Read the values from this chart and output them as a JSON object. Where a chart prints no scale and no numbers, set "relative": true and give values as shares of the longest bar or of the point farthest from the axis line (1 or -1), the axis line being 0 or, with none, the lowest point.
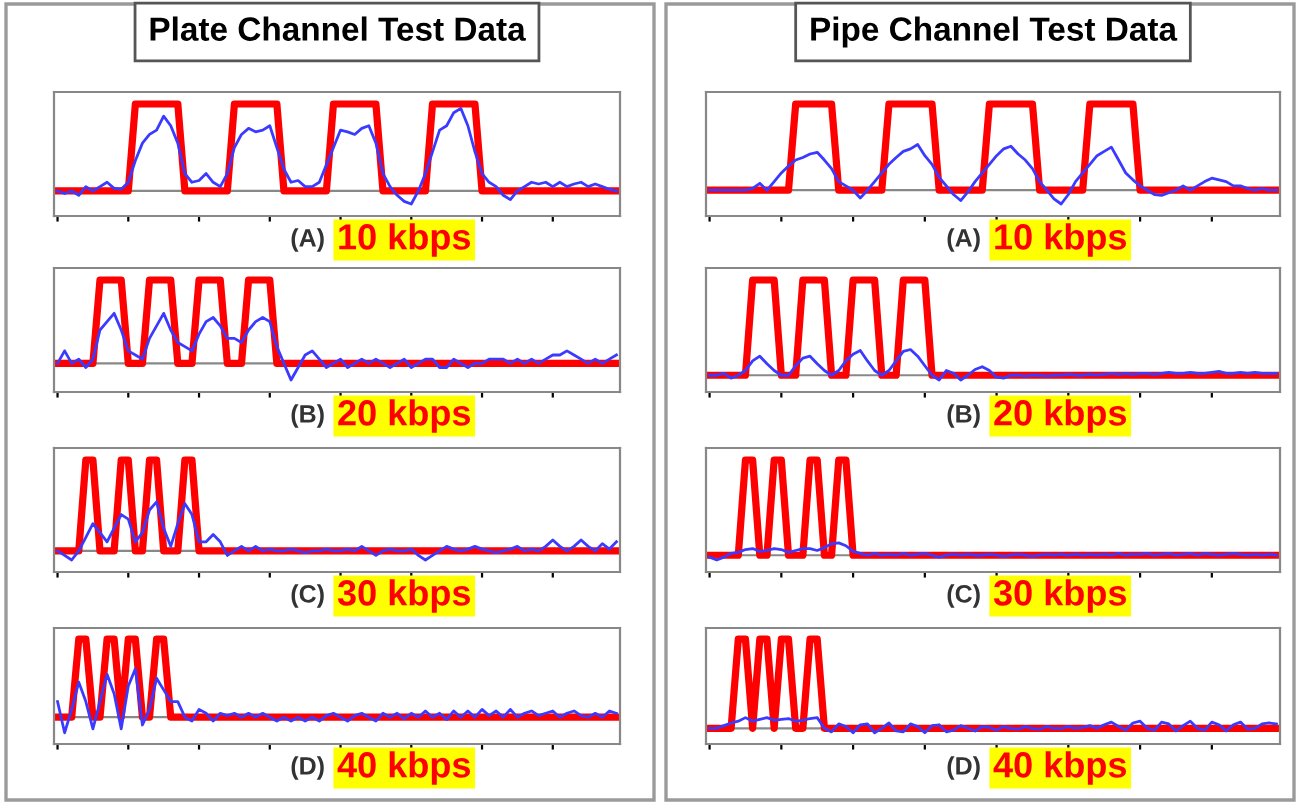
{
  "chart_data": [
    {
      "type": "line",
      "relative": true,
      "title": "Plate Channel Test Data",
      "annotations": [
        "(A)",
        "10 kbps"
      ],
      "categories": [
        null,
        null,
        null,
        null,
        null,
        null,
        null,
        null,
        null,
        null,
        null,
        null,
        null,
        null,
        null,
        null,
        null,
        null,
        null,
        null,
        null,
        null,
        null,
        null,
        null,
        null,
        null,
        null,
        null,
        null,
        null,
        null,
        null,
        null,
        null,
        null,
        null,
        null,
        null,
        null,
        null,
        null,
        null,
        null,
        null,
        null,
        null,
        null,
        null,
        null,
        null,
        null,
        null,
        null,
        null,
        null,
        null,
        null,
        null,
        null,
        null,
        null,
        null,
        null,
        null,
        null,
        null,
        null,
        null,
        null,
        null,
        null,
        null,
        null,
        null,
        null,
        null,
        null,
        null,
        null
      ],
      "series": [
        {
          "color": "#ff0000",
          "values": [
            0,
            0,
            0,
            0,
            0,
            0,
            0,
            0,
            0,
            0,
            0,
            1,
            1,
            1,
            1,
            1,
            1,
            1,
            0,
            0,
            0,
            0,
            0,
            0,
            0,
            1,
            1,
            1,
            1,
            1,
            1,
            1,
            0,
            0,
            0,
            0,
            0,
            0,
            0,
            1,
            1,
            1,
            1,
            1,
            1,
            1,
            0,
            0,
            0,
            0,
            0,
            0,
            0,
            1,
            1,
            1,
            1,
            1,
            1,
            1,
            0,
            0,
            0,
            0,
            0,
            0,
            0,
            0,
            0,
            0,
            0,
            0,
            0,
            0,
            0,
            0,
            0,
            0,
            0,
            0
          ]
        },
        {
          "color": "#3b3bff",
          "values": [
            0.0,
            -0.03,
            0.0,
            -0.05,
            0.05,
            0.0,
            0.05,
            0.1,
            0.03,
            0.02,
            0.1,
            0.35,
            0.55,
            0.65,
            0.7,
            0.86,
            0.75,
            0.55,
            0.2,
            0.1,
            0.12,
            0.2,
            0.1,
            0.05,
            0.2,
            0.5,
            0.65,
            0.72,
            0.68,
            0.7,
            0.75,
            0.5,
            0.25,
            0.1,
            0.12,
            0.05,
            0.05,
            0.1,
            0.3,
            0.5,
            0.7,
            0.68,
            0.65,
            0.72,
            0.75,
            0.55,
            0.2,
            0.05,
            -0.05,
            -0.12,
            -0.15,
            0.0,
            0.2,
            0.45,
            0.7,
            0.75,
            0.9,
            0.95,
            0.75,
            0.45,
            0.2,
            0.1,
            0.05,
            -0.05,
            -0.1,
            0.0,
            0.05,
            0.1,
            0.08,
            0.1,
            0.05,
            0.1,
            0.05,
            0.08,
            0.1,
            0.05,
            0.08,
            0.05,
            0.02,
            0.0
          ]
        }
      ]
    },
    {
      "type": "line",
      "relative": true,
      "annotations": [
        "(B)",
        "20 kbps"
      ],
      "categories": [
        null,
        null,
        null,
        null,
        null,
        null,
        null,
        null,
        null,
        null,
        null,
        null,
        null,
        null,
        null,
        null,
        null,
        null,
        null,
        null,
        null,
        null,
        null,
        null,
        null,
        null,
        null,
        null,
        null,
        null,
        null,
        null,
        null,
        null,
        null,
        null,
        null,
        null,
        null,
        null,
        null,
        null,
        null,
        null,
        null,
        null,
        null,
        null,
        null,
        null,
        null,
        null,
        null,
        null,
        null,
        null,
        null,
        null,
        null,
        null,
        null,
        null,
        null,
        null,
        null,
        null,
        null,
        null,
        null,
        null,
        null,
        null,
        null,
        null,
        null,
        null,
        null,
        null,
        null,
        null
      ],
      "series": [
        {
          "color": "#ff0000",
          "values": [
            0,
            0,
            0,
            0,
            0,
            0,
            1,
            1,
            1,
            1,
            0,
            0,
            0,
            1,
            1,
            1,
            1,
            0,
            0,
            0,
            1,
            1,
            1,
            1,
            0,
            0,
            0,
            1,
            1,
            1,
            1,
            0,
            0,
            0,
            0,
            0,
            0,
            0,
            0,
            0,
            0,
            0,
            0,
            0,
            0,
            0,
            0,
            0,
            0,
            0,
            0,
            0,
            0,
            0,
            0,
            0,
            0,
            0,
            0,
            0,
            0,
            0,
            0,
            0,
            0,
            0,
            0,
            0,
            0,
            0,
            0,
            0,
            0,
            0,
            0,
            0,
            0,
            0,
            0,
            0
          ]
        },
        {
          "color": "#3b3bff",
          "values": [
            0.0,
            0.15,
            0.0,
            0.05,
            -0.05,
            0.05,
            0.4,
            0.5,
            0.6,
            0.4,
            0.15,
            0.1,
            0.05,
            0.3,
            0.45,
            0.6,
            0.4,
            0.25,
            0.2,
            0.15,
            0.35,
            0.5,
            0.55,
            0.45,
            0.3,
            0.3,
            0.25,
            0.4,
            0.5,
            0.55,
            0.5,
            0.2,
            0.0,
            -0.2,
            -0.05,
            0.1,
            0.15,
            0.05,
            -0.05,
            0.0,
            0.05,
            -0.05,
            0.0,
            0.05,
            0.0,
            0.05,
            0.0,
            -0.05,
            0.0,
            0.05,
            -0.05,
            0.0,
            0.05,
            0.05,
            -0.05,
            -0.05,
            0.05,
            0.0,
            -0.05,
            0.0,
            0.0,
            0.05,
            0.05,
            0.05,
            0.0,
            0.05,
            0.0,
            0.05,
            0.0,
            0.05,
            0.1,
            0.1,
            0.15,
            0.1,
            0.05,
            0.0,
            0.05,
            0.0,
            0.05,
            0.1
          ]
        }
      ]
    },
    {
      "type": "line",
      "relative": true,
      "annotations": [
        "(C)",
        "30 kbps"
      ],
      "categories": [
        null,
        null,
        null,
        null,
        null,
        null,
        null,
        null,
        null,
        null,
        null,
        null,
        null,
        null,
        null,
        null,
        null,
        null,
        null,
        null,
        null,
        null,
        null,
        null,
        null,
        null,
        null,
        null,
        null,
        null,
        null,
        null,
        null,
        null,
        null,
        null,
        null,
        null,
        null,
        null,
        null,
        null,
        null,
        null,
        null,
        null,
        null,
        null,
        null,
        null,
        null,
        null,
        null,
        null,
        null,
        null,
        null,
        null,
        null,
        null,
        null,
        null,
        null,
        null,
        null,
        null,
        null,
        null,
        null,
        null,
        null,
        null,
        null,
        null,
        null,
        null,
        null,
        null,
        null,
        null
      ],
      "series": [
        {
          "color": "#ff0000",
          "values": [
            0,
            0,
            0,
            0,
            1,
            1,
            0,
            0,
            0,
            1,
            1,
            0,
            0,
            1,
            1,
            0,
            0,
            0,
            1,
            1,
            0,
            0,
            0,
            0,
            0,
            0,
            0,
            0,
            0,
            0,
            0,
            0,
            0,
            0,
            0,
            0,
            0,
            0,
            0,
            0,
            0,
            0,
            0,
            0,
            0,
            0,
            0,
            0,
            0,
            0,
            0,
            0,
            0,
            0,
            0,
            0,
            0,
            0,
            0,
            0,
            0,
            0,
            0,
            0,
            0,
            0,
            0,
            0,
            0,
            0,
            0,
            0,
            0,
            0,
            0,
            0,
            0,
            0,
            0,
            0
          ]
        },
        {
          "color": "#3b3bff",
          "values": [
            0.0,
            -0.05,
            -0.1,
            0.0,
            0.15,
            0.3,
            0.2,
            0.1,
            0.25,
            0.4,
            0.35,
            0.1,
            0.2,
            0.45,
            0.54,
            0.25,
            0.05,
            0.3,
            0.52,
            0.4,
            0.1,
            0.1,
            0.18,
            0.1,
            -0.05,
            0.0,
            0.05,
            0.0,
            0.05,
            0.0,
            0.02,
            0.0,
            0.0,
            0.02,
            0.0,
            -0.02,
            0.0,
            0.0,
            0.02,
            0.0,
            0.0,
            0.02,
            0.0,
            0.05,
            0.0,
            -0.05,
            0.0,
            0.02,
            0.0,
            0.0,
            0.02,
            -0.05,
            -0.1,
            -0.05,
            0.0,
            0.05,
            0.02,
            0.0,
            0.02,
            0.05,
            0.02,
            0.0,
            -0.02,
            0.0,
            0.02,
            0.05,
            0.0,
            0.02,
            0.0,
            0.05,
            0.12,
            0.05,
            0.0,
            0.05,
            0.12,
            0.05,
            0.0,
            0.08,
            0.02,
            0.1
          ]
        }
      ]
    },
    {
      "type": "line",
      "relative": true,
      "annotations": [
        "(D)",
        "40 kbps"
      ],
      "categories": [
        null,
        null,
        null,
        null,
        null,
        null,
        null,
        null,
        null,
        null,
        null,
        null,
        null,
        null,
        null,
        null,
        null,
        null,
        null,
        null,
        null,
        null,
        null,
        null,
        null,
        null,
        null,
        null,
        null,
        null,
        null,
        null,
        null,
        null,
        null,
        null,
        null,
        null,
        null,
        null,
        null,
        null,
        null,
        null,
        null,
        null,
        null,
        null,
        null,
        null,
        null,
        null,
        null,
        null,
        null,
        null,
        null,
        null,
        null,
        null,
        null,
        null,
        null,
        null,
        null,
        null,
        null,
        null,
        null,
        null,
        null,
        null,
        null,
        null,
        null,
        null,
        null,
        null,
        null,
        null
      ],
      "series": [
        {
          "color": "#ff0000",
          "values": [
            0,
            0,
            0,
            1,
            1,
            0,
            0,
            1,
            1,
            0,
            1,
            1,
            0,
            0,
            1,
            1,
            0,
            0,
            0,
            0,
            0,
            0,
            0,
            0,
            0,
            0,
            0,
            0,
            0,
            0,
            0,
            0,
            0,
            0,
            0,
            0,
            0,
            0,
            0,
            0,
            0,
            0,
            0,
            0,
            0,
            0,
            0,
            0,
            0,
            0,
            0,
            0,
            0,
            0,
            0,
            0,
            0,
            0,
            0,
            0,
            0,
            0,
            0,
            0,
            0,
            0,
            0,
            0,
            0,
            0,
            0,
            0,
            0,
            0,
            0,
            0,
            0,
            0,
            0,
            0
          ]
        },
        {
          "color": "#3b3bff",
          "values": [
            0.2,
            -0.2,
            0.1,
            0.45,
            0.2,
            -0.15,
            0.2,
            0.55,
            0.3,
            -0.15,
            0.4,
            0.62,
            -0.1,
            0.1,
            0.5,
            0.35,
            0.2,
            0.2,
            0.0,
            -0.05,
            0.1,
            0.05,
            -0.05,
            0.05,
            0.02,
            0.05,
            0.0,
            0.05,
            0.0,
            0.05,
            0.0,
            -0.05,
            0.0,
            -0.05,
            0.0,
            -0.05,
            0.0,
            -0.05,
            0.02,
            0.05,
            0.0,
            -0.05,
            0.02,
            0.05,
            0.0,
            -0.05,
            0.05,
            0.0,
            0.05,
            -0.02,
            0.05,
            0.0,
            0.08,
            0.0,
            0.05,
            -0.03,
            0.08,
            0.0,
            0.08,
            0.0,
            0.1,
            0.02,
            0.08,
            0.0,
            0.1,
            0.0,
            0.05,
            0.08,
            0.02,
            0.05,
            0.08,
            0.0,
            0.05,
            0.08,
            0.02,
            0.0,
            0.05,
            0.0,
            0.08,
            0.05
          ]
        }
      ]
    },
    {
      "type": "line",
      "relative": true,
      "title": "Pipe Channel Test Data",
      "annotations": [
        "(A)",
        "10 kbps"
      ],
      "categories": [
        null,
        null,
        null,
        null,
        null,
        null,
        null,
        null,
        null,
        null,
        null,
        null,
        null,
        null,
        null,
        null,
        null,
        null,
        null,
        null,
        null,
        null,
        null,
        null,
        null,
        null,
        null,
        null,
        null,
        null,
        null,
        null,
        null,
        null,
        null,
        null,
        null,
        null,
        null,
        null,
        null,
        null,
        null,
        null,
        null,
        null,
        null,
        null,
        null,
        null,
        null,
        null,
        null,
        null,
        null,
        null,
        null,
        null,
        null,
        null,
        null,
        null,
        null,
        null,
        null,
        null,
        null,
        null,
        null,
        null,
        null,
        null,
        null,
        null,
        null,
        null,
        null,
        null,
        null,
        null
      ],
      "series": [
        {
          "color": "#ff0000",
          "values": [
            0,
            0,
            0,
            0,
            0,
            0,
            0,
            0,
            0,
            0,
            0,
            0,
            1,
            1,
            1,
            1,
            1,
            1,
            0,
            0,
            0,
            0,
            0,
            0,
            0,
            1,
            1,
            1,
            1,
            1,
            1,
            1,
            0,
            0,
            0,
            0,
            0,
            0,
            0,
            1,
            1,
            1,
            1,
            1,
            1,
            1,
            0,
            0,
            0,
            0,
            0,
            0,
            0,
            1,
            1,
            1,
            1,
            1,
            1,
            1,
            0,
            0,
            0,
            0,
            0,
            0,
            0,
            0,
            0,
            0,
            0,
            0,
            0,
            0,
            0,
            0,
            0,
            0,
            0,
            0
          ]
        },
        {
          "color": "#3b3bff",
          "values": [
            0.0,
            0.0,
            0.0,
            0.0,
            0.0,
            0.0,
            0.02,
            0.08,
            0.0,
            0.1,
            0.2,
            0.28,
            0.35,
            0.38,
            0.42,
            0.44,
            0.35,
            0.25,
            0.1,
            0.05,
            0.0,
            -0.09,
            0.0,
            0.1,
            0.2,
            0.3,
            0.38,
            0.45,
            0.48,
            0.53,
            0.4,
            0.3,
            0.15,
            0.05,
            -0.05,
            -0.12,
            -0.02,
            0.1,
            0.2,
            0.3,
            0.4,
            0.48,
            0.51,
            0.42,
            0.35,
            0.25,
            0.1,
            0.0,
            -0.1,
            -0.16,
            -0.05,
            0.1,
            0.2,
            0.3,
            0.4,
            0.45,
            0.5,
            0.35,
            0.2,
            0.12,
            0.05,
            0.0,
            -0.05,
            -0.06,
            -0.03,
            0.0,
            0.05,
            0.0,
            0.05,
            0.1,
            0.14,
            0.12,
            0.1,
            0.05,
            0.05,
            0.02,
            0.0,
            0.02,
            0.0,
            0.0
          ]
        }
      ]
    },
    {
      "type": "line",
      "relative": true,
      "annotations": [
        "(B)",
        "20 kbps"
      ],
      "categories": [
        null,
        null,
        null,
        null,
        null,
        null,
        null,
        null,
        null,
        null,
        null,
        null,
        null,
        null,
        null,
        null,
        null,
        null,
        null,
        null,
        null,
        null,
        null,
        null,
        null,
        null,
        null,
        null,
        null,
        null,
        null,
        null,
        null,
        null,
        null,
        null,
        null,
        null,
        null,
        null,
        null,
        null,
        null,
        null,
        null,
        null,
        null,
        null,
        null,
        null,
        null,
        null,
        null,
        null,
        null,
        null,
        null,
        null,
        null,
        null,
        null,
        null,
        null,
        null,
        null,
        null,
        null,
        null,
        null,
        null,
        null,
        null,
        null,
        null,
        null,
        null,
        null,
        null,
        null,
        null
      ],
      "series": [
        {
          "color": "#ff0000",
          "values": [
            0,
            0,
            0,
            0,
            0,
            0,
            1,
            1,
            1,
            1,
            0,
            0,
            0,
            1,
            1,
            1,
            1,
            0,
            0,
            0,
            1,
            1,
            1,
            1,
            0,
            0,
            0,
            1,
            1,
            1,
            1,
            0,
            0,
            0,
            0,
            0,
            0,
            0,
            0,
            0,
            0,
            0,
            0,
            0,
            0,
            0,
            0,
            0,
            0,
            0,
            0,
            0,
            0,
            0,
            0,
            0,
            0,
            0,
            0,
            0,
            0,
            0,
            0,
            0,
            0,
            0,
            0,
            0,
            0,
            0,
            0,
            0,
            0,
            0,
            0,
            0,
            0,
            0,
            0,
            0
          ]
        },
        {
          "color": "#3b3bff",
          "values": [
            0.0,
            0.0,
            0.02,
            -0.03,
            0.0,
            0.05,
            0.15,
            0.2,
            0.12,
            0.05,
            0.0,
            0.0,
            0.1,
            0.18,
            0.2,
            0.12,
            0.05,
            0.0,
            0.05,
            0.15,
            0.22,
            0.26,
            0.15,
            0.05,
            0.0,
            0.05,
            0.15,
            0.25,
            0.27,
            0.2,
            0.1,
            0.0,
            -0.05,
            0.05,
            0.02,
            -0.05,
            0.0,
            0.06,
            0.09,
            0.05,
            -0.02,
            -0.03,
            0.0,
            0.0,
            -0.01,
            0.0,
            0.0,
            -0.01,
            0.0,
            0.0,
            0.01,
            0.0,
            0.0,
            0.01,
            0.0,
            0.01,
            0.02,
            0.01,
            0.02,
            0.01,
            0.02,
            0.02,
            0.01,
            0.02,
            0.03,
            0.02,
            0.02,
            0.03,
            0.02,
            0.02,
            0.03,
            0.04,
            0.02,
            0.02,
            0.03,
            0.02,
            0.03,
            0.02,
            0.02,
            0.02
          ]
        }
      ]
    },
    {
      "type": "line",
      "relative": true,
      "annotations": [
        "(C)",
        "30 kbps"
      ],
      "categories": [
        null,
        null,
        null,
        null,
        null,
        null,
        null,
        null,
        null,
        null,
        null,
        null,
        null,
        null,
        null,
        null,
        null,
        null,
        null,
        null,
        null,
        null,
        null,
        null,
        null,
        null,
        null,
        null,
        null,
        null,
        null,
        null,
        null,
        null,
        null,
        null,
        null,
        null,
        null,
        null,
        null,
        null,
        null,
        null,
        null,
        null,
        null,
        null,
        null,
        null,
        null,
        null,
        null,
        null,
        null,
        null,
        null,
        null,
        null,
        null,
        null,
        null,
        null,
        null,
        null,
        null,
        null,
        null,
        null,
        null,
        null,
        null,
        null,
        null,
        null,
        null,
        null,
        null,
        null,
        null
      ],
      "series": [
        {
          "color": "#ff0000",
          "values": [
            0,
            0,
            0,
            0,
            0,
            1,
            1,
            0,
            0,
            1,
            1,
            0,
            0,
            0,
            1,
            1,
            0,
            0,
            1,
            1,
            0,
            0,
            0,
            0,
            0,
            0,
            0,
            0,
            0,
            0,
            0,
            0,
            0,
            0,
            0,
            0,
            0,
            0,
            0,
            0,
            0,
            0,
            0,
            0,
            0,
            0,
            0,
            0,
            0,
            0,
            0,
            0,
            0,
            0,
            0,
            0,
            0,
            0,
            0,
            0,
            0,
            0,
            0,
            0,
            0,
            0,
            0,
            0,
            0,
            0,
            0,
            0,
            0,
            0,
            0,
            0,
            0,
            0,
            0,
            0
          ]
        },
        {
          "color": "#3b3bff",
          "values": [
            -0.02,
            -0.05,
            -0.02,
            0.02,
            0.03,
            0.06,
            0.07,
            0.04,
            0.05,
            0.07,
            0.06,
            0.03,
            0.05,
            0.07,
            0.07,
            0.05,
            0.08,
            0.12,
            0.13,
            0.1,
            0.04,
            0.02,
            0.0,
            0.02,
            0.0,
            0.01,
            0.0,
            0.02,
            0.0,
            0.01,
            0.02,
            0.0,
            -0.02,
            0.0,
            0.01,
            0.0,
            0.01,
            0.0,
            0.0,
            0.01,
            0.0,
            -0.01,
            0.0,
            0.01,
            0.0,
            -0.01,
            0.0,
            0.01,
            0.0,
            0.01,
            0.0,
            0.01,
            0.0,
            0.01,
            0.0,
            0.01,
            0.0,
            0.02,
            0.0,
            0.01,
            0.01,
            0.02,
            0.0,
            0.01,
            0.02,
            0.0,
            0.01,
            0.02,
            0.0,
            0.02,
            0.01,
            0.0,
            0.01,
            0.02,
            0.01,
            0.0,
            0.01,
            0.0,
            0.01,
            0.0
          ]
        }
      ]
    },
    {
      "type": "line",
      "relative": true,
      "annotations": [
        "(D)",
        "40 kbps"
      ],
      "categories": [
        null,
        null,
        null,
        null,
        null,
        null,
        null,
        null,
        null,
        null,
        null,
        null,
        null,
        null,
        null,
        null,
        null,
        null,
        null,
        null,
        null,
        null,
        null,
        null,
        null,
        null,
        null,
        null,
        null,
        null,
        null,
        null,
        null,
        null,
        null,
        null,
        null,
        null,
        null,
        null,
        null,
        null,
        null,
        null,
        null,
        null,
        null,
        null,
        null,
        null,
        null,
        null,
        null,
        null,
        null,
        null,
        null,
        null,
        null,
        null,
        null,
        null,
        null,
        null,
        null,
        null,
        null,
        null,
        null,
        null,
        null,
        null,
        null,
        null,
        null,
        null,
        null,
        null,
        null,
        null
      ],
      "series": [
        {
          "color": "#ff0000",
          "values": [
            0,
            0,
            0,
            0,
            1,
            1,
            0,
            1,
            1,
            0,
            1,
            1,
            0,
            0,
            1,
            1,
            0,
            0,
            0,
            0,
            0,
            0,
            0,
            0,
            0,
            0,
            0,
            0,
            0,
            0,
            0,
            0,
            0,
            0,
            0,
            0,
            0,
            0,
            0,
            0,
            0,
            0,
            0,
            0,
            0,
            0,
            0,
            0,
            0,
            0,
            0,
            0,
            0,
            0,
            0,
            0,
            0,
            0,
            0,
            0,
            0,
            0,
            0,
            0,
            0,
            0,
            0,
            0,
            0,
            0,
            0,
            0,
            0,
            0,
            0,
            0,
            0,
            0,
            0,
            0
          ]
        },
        {
          "color": "#3b3bff",
          "values": [
            0.0,
            0.0,
            0.03,
            0.06,
            0.08,
            0.12,
            0.08,
            0.1,
            0.12,
            0.09,
            0.1,
            0.11,
            0.08,
            0.09,
            0.11,
            0.12,
            0.0,
            -0.04,
            0.05,
            0.02,
            -0.05,
            0.04,
            0.05,
            -0.05,
            0.0,
            0.06,
            -0.03,
            -0.04,
            0.05,
            0.02,
            -0.05,
            0.03,
            0.04,
            -0.04,
            -0.02,
            0.03,
            0.0,
            -0.03,
            0.02,
            0.01,
            -0.02,
            0.02,
            0.0,
            -0.01,
            0.02,
            0.0,
            -0.01,
            0.02,
            0.0,
            0.0,
            0.02,
            0.0,
            0.01,
            0.03,
            0.0,
            0.04,
            0.07,
            0.02,
            -0.02,
            0.06,
            0.08,
            0.0,
            -0.02,
            0.07,
            0.05,
            -0.03,
            0.03,
            0.08,
            0.0,
            -0.02,
            0.07,
            0.04,
            -0.03,
            0.04,
            0.07,
            -0.01,
            0.0,
            0.05,
            0.06,
            0.05
          ]
        }
      ]
    }
  ]
}
